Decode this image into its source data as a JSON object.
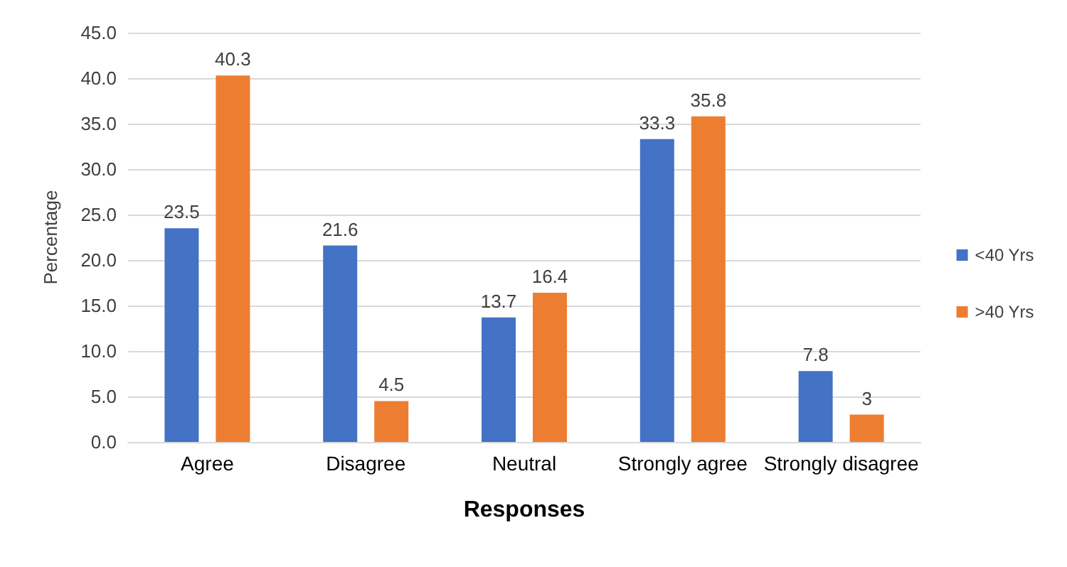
{
  "chart_data": {
    "type": "bar",
    "xlabel": "Responses",
    "ylabel": "Percentage",
    "categories": [
      "Agree",
      "Disagree",
      "Neutral",
      "Strongly agree",
      "Strongly disagree"
    ],
    "series": [
      {
        "name": "<40 Yrs",
        "color": "#4472c4",
        "values": [
          23.5,
          21.6,
          13.7,
          33.3,
          7.8
        ]
      },
      {
        "name": ">40 Yrs",
        "color": "#ed7d31",
        "values": [
          40.3,
          4.5,
          16.4,
          35.8,
          3
        ]
      }
    ],
    "ylim": [
      0,
      45
    ],
    "yticks": [
      {
        "value": 0,
        "label": "0.0"
      },
      {
        "value": 5,
        "label": "5.0"
      },
      {
        "value": 10,
        "label": "10.0"
      },
      {
        "value": 15,
        "label": "15.0"
      },
      {
        "value": 20,
        "label": "20.0"
      },
      {
        "value": 25,
        "label": "25.0"
      },
      {
        "value": 30,
        "label": "30.0"
      },
      {
        "value": 35,
        "label": "35.0"
      },
      {
        "value": 40,
        "label": "40.0"
      },
      {
        "value": 45,
        "label": "45.0"
      }
    ],
    "grid": "y",
    "legend": "right",
    "data_labels": true
  }
}
